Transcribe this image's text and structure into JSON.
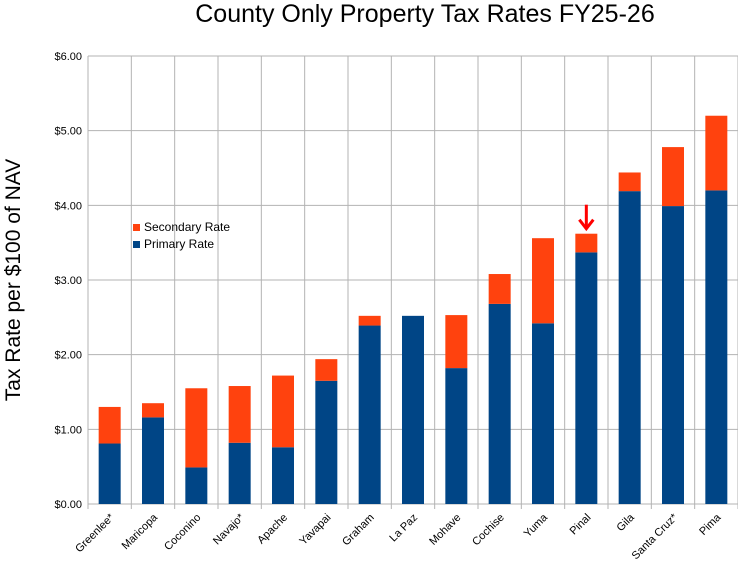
{
  "chart_data": {
    "type": "bar",
    "stacked": true,
    "title": "County Only Property Tax Rates FY25-26",
    "xlabel": "",
    "ylabel": "Tax Rate per $100 of NAV",
    "ylim": [
      0,
      6
    ],
    "y_ticks": [
      0,
      1,
      2,
      3,
      4,
      5,
      6
    ],
    "y_tick_labels": [
      "$0.00",
      "$1.00",
      "$2.00",
      "$3.00",
      "$4.00",
      "$5.00",
      "$6.00"
    ],
    "grid": true,
    "legend_position": "upper-left",
    "categories": [
      "Greenlee*",
      "Maricopa",
      "Coconino",
      "Navajo*",
      "Apache",
      "Yavapai",
      "Graham",
      "La Paz",
      "Mohave",
      "Cochise",
      "Yuma",
      "Pinal",
      "Gila",
      "Santa Cruz*",
      "Pima"
    ],
    "series": [
      {
        "name": "Primary Rate",
        "color": "#004586",
        "values": [
          0.81,
          1.16,
          0.49,
          0.82,
          0.76,
          1.65,
          2.39,
          2.52,
          1.82,
          2.68,
          2.42,
          3.37,
          4.19,
          3.99,
          4.2
        ]
      },
      {
        "name": "Secondary Rate",
        "color": "#ff420e",
        "values": [
          0.49,
          0.19,
          1.06,
          0.76,
          0.96,
          0.29,
          0.13,
          0.0,
          0.71,
          0.4,
          1.14,
          0.25,
          0.25,
          0.79,
          1.0
        ]
      }
    ],
    "annotations": [
      {
        "type": "arrow",
        "category": "Pinal",
        "color": "#ff0000",
        "meaning": "highlight"
      }
    ]
  }
}
